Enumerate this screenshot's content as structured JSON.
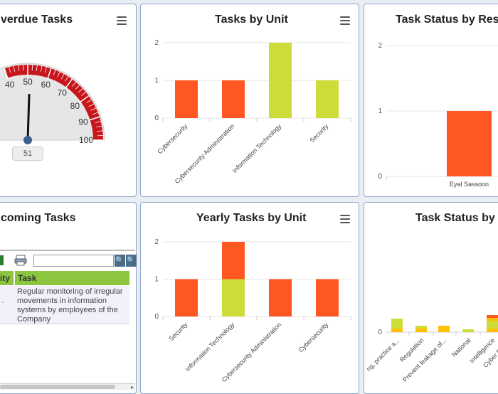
{
  "panels": {
    "overdue": {
      "title": "verdue Tasks",
      "value_label": "51",
      "gauge": {
        "min": 0,
        "max": 100,
        "value": 51,
        "labels": [
          "40",
          "50",
          "60",
          "70",
          "80",
          "90",
          "100"
        ]
      }
    },
    "unit": {
      "title": "Tasks by Unit"
    },
    "status_resp": {
      "title": "Task Status by Resp"
    },
    "upcoming": {
      "title": "coming Tasks",
      "columns": [
        "ity",
        "Task"
      ],
      "rows": [
        {
          "priority": "",
          "task": [
            "Regular monitoring of irregular",
            "movements in information",
            "systems by employees of the",
            "Company"
          ]
        }
      ]
    },
    "yearly": {
      "title": "Yearly Tasks by Unit"
    },
    "status_other": {
      "title": "Task Status by I"
    }
  },
  "chart_data": [
    {
      "type": "bar",
      "title": "Tasks by Unit",
      "categories": [
        "Cybersecurity",
        "Cybersecurity Administration",
        "Information Technology",
        "Security"
      ],
      "values": [
        1,
        1,
        2,
        1
      ],
      "colors": [
        "#ff5722",
        "#ff5722",
        "#cddc39",
        "#cddc39"
      ],
      "yticks": [
        "0",
        "1",
        "2"
      ],
      "ylim": [
        0,
        2
      ]
    },
    {
      "type": "bar",
      "title": "Task Status by Resp",
      "categories": [
        "Eyal Sassoon"
      ],
      "values": [
        1
      ],
      "colors": [
        "#ff5722"
      ],
      "yticks": [
        "0",
        "1",
        "2"
      ],
      "ylim": [
        0,
        2
      ]
    },
    {
      "type": "bar",
      "title": "Yearly Tasks by Unit",
      "stacked": true,
      "categories": [
        "Security",
        "Information Technology",
        "Cybersecurity Administration",
        "Cybersecurity"
      ],
      "series": [
        {
          "values": [
            1,
            1,
            1,
            1
          ],
          "colors": [
            "#ff5722",
            "#cddc39",
            "#ff5722",
            "#ff5722"
          ]
        },
        {
          "values": [
            0,
            1,
            0,
            0
          ],
          "colors": [
            "#ff5722",
            "#ff5722",
            "#ff5722",
            "#ff5722"
          ]
        }
      ],
      "yticks": [
        "0",
        "1",
        "2"
      ],
      "ylim": [
        0,
        2
      ]
    },
    {
      "type": "bar",
      "title": "Task Status by I",
      "stacked": true,
      "categories": [
        "ng, practice a...",
        "Regulation",
        "Prevent leakage of...",
        "National",
        "Intelligence",
        "Cyber Risk M"
      ],
      "yticks": [
        "0"
      ]
    }
  ]
}
